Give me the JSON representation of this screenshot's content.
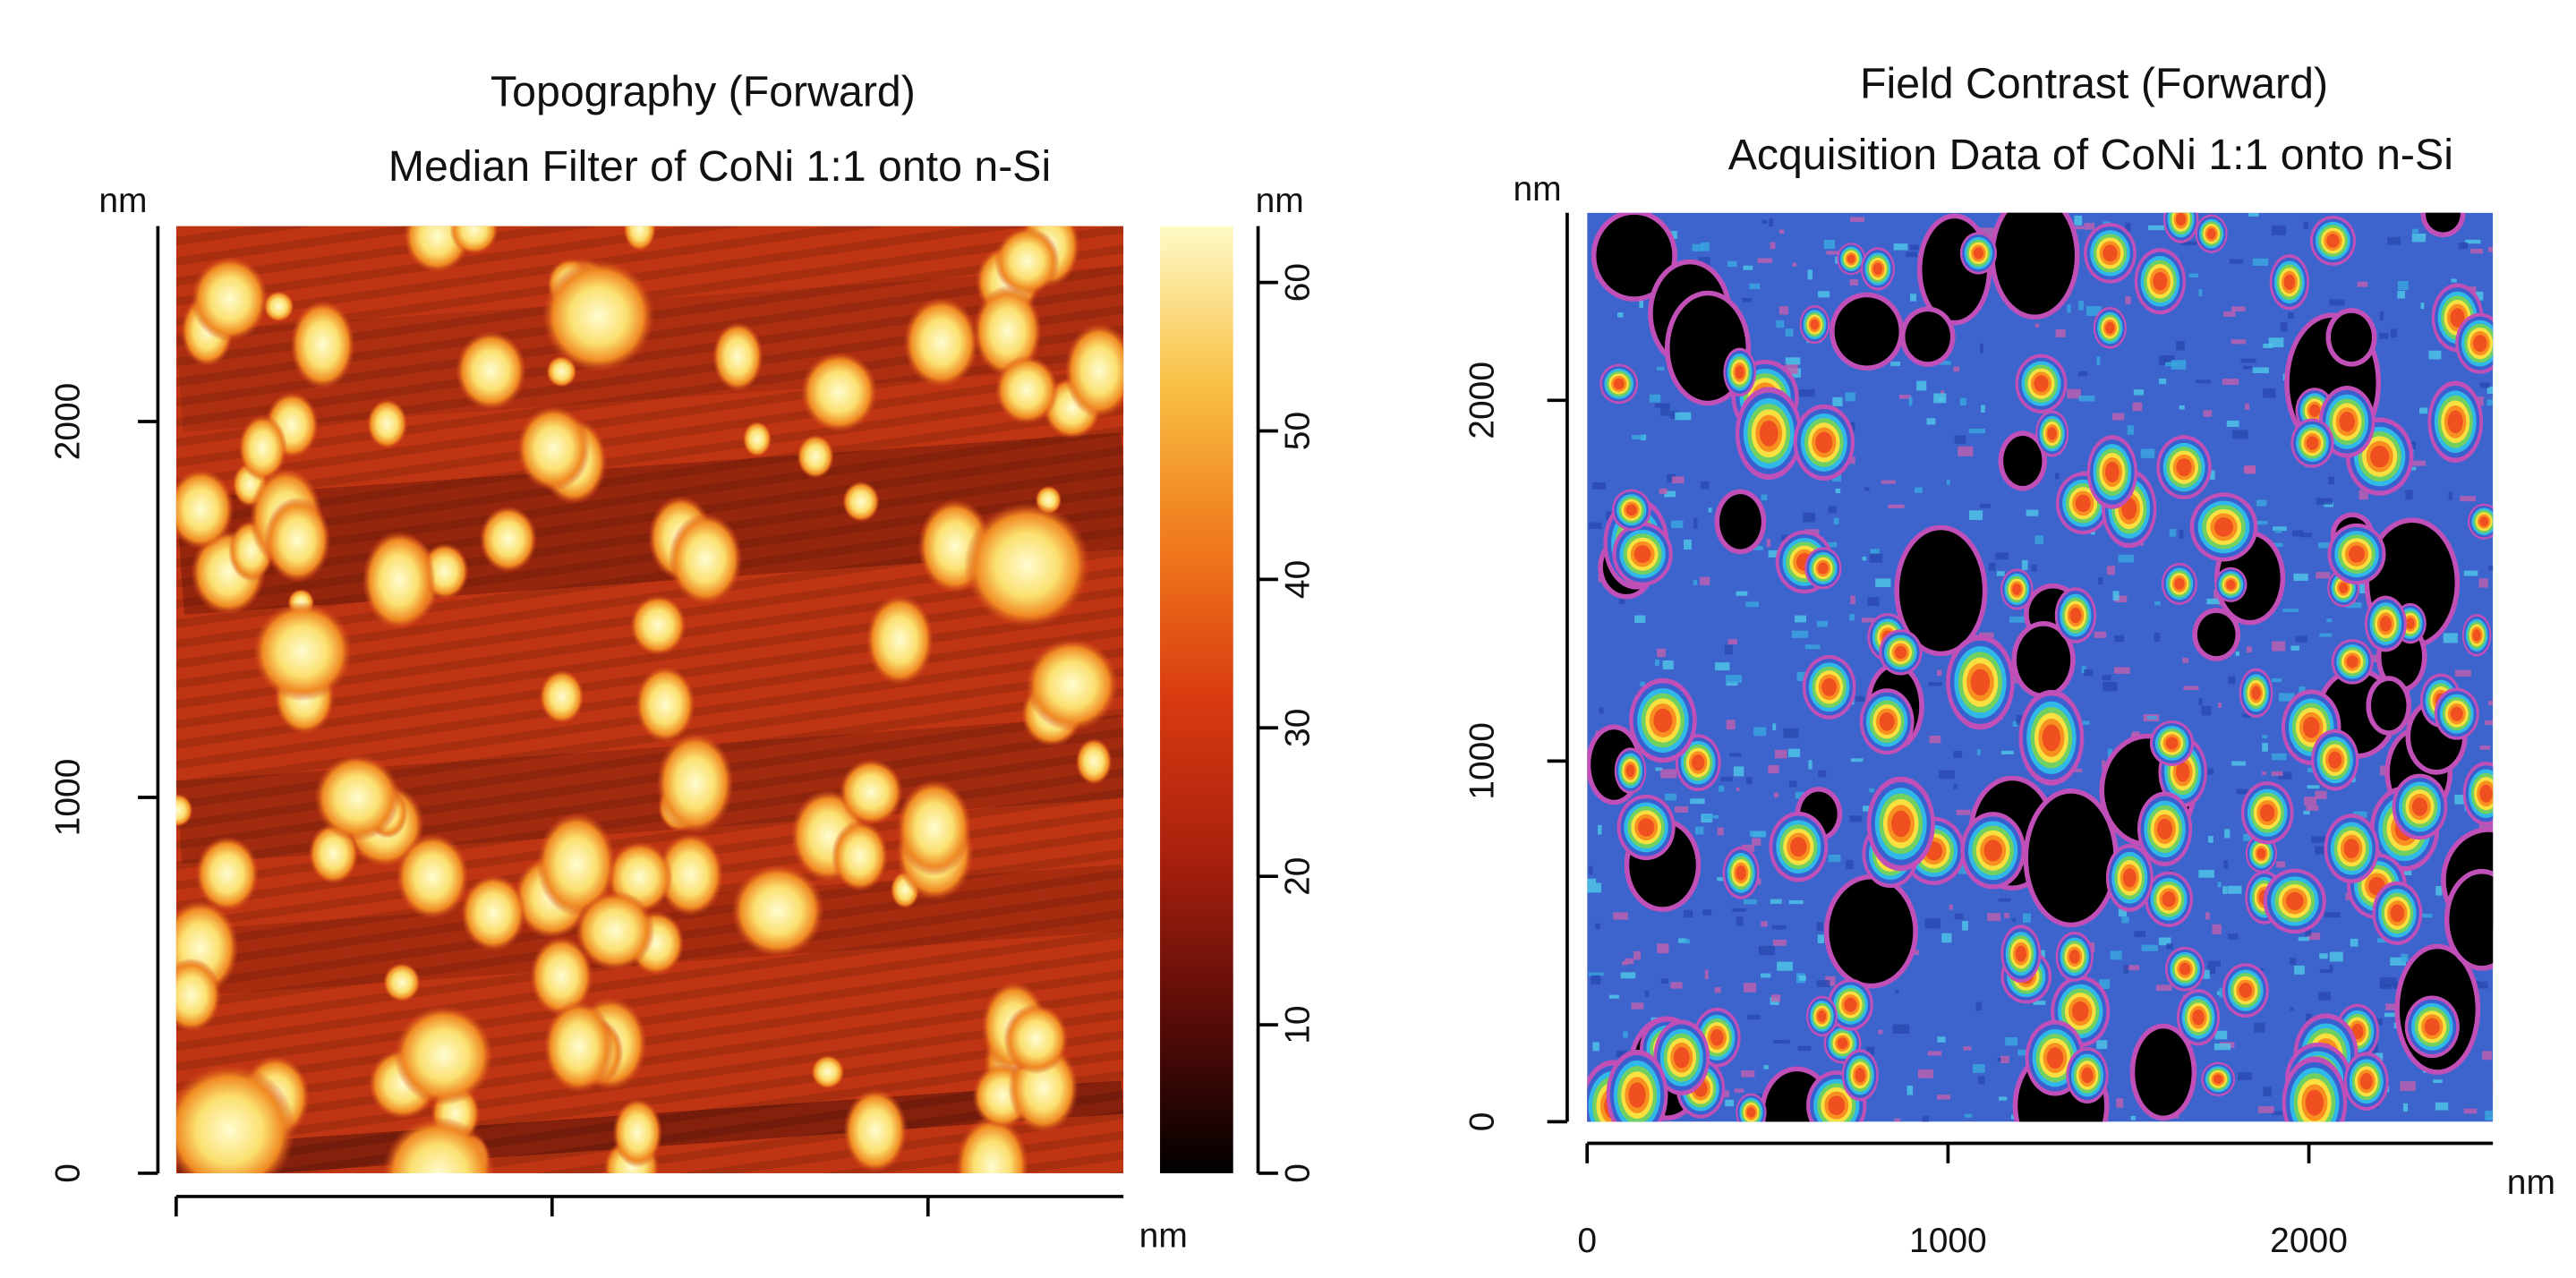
{
  "chart_data": [
    {
      "type": "image",
      "title": "Topography (Forward)",
      "subtitle": "Median Filter of CoNi 1:1 onto n-Si",
      "x_label": "nm",
      "y_label": "nm",
      "xlim": [
        0,
        2520
      ],
      "ylim": [
        0,
        2520
      ],
      "xticks": [
        0,
        1000,
        2000
      ],
      "yticks": [
        0,
        1000,
        2000
      ],
      "colorbar": {
        "label": "nm",
        "zlim": [
          0,
          63.8
        ],
        "zticks": [
          0,
          10,
          20,
          30,
          40,
          50,
          60
        ],
        "colormap": [
          "#000000",
          "#5a0c08",
          "#a8200e",
          "#d83a10",
          "#f07a1c",
          "#f8c044",
          "#fffac8"
        ]
      }
    },
    {
      "type": "image",
      "title": "Field Contrast (Forward)",
      "subtitle": "Acquisition Data of CoNi 1:1 onto n-Si",
      "x_label": "nm",
      "y_label": "nm",
      "xlim": [
        0,
        2510
      ],
      "ylim": [
        0,
        2520
      ],
      "xticks": [
        0,
        1000,
        2000
      ],
      "yticks": [
        0,
        1000,
        2000
      ]
    }
  ]
}
